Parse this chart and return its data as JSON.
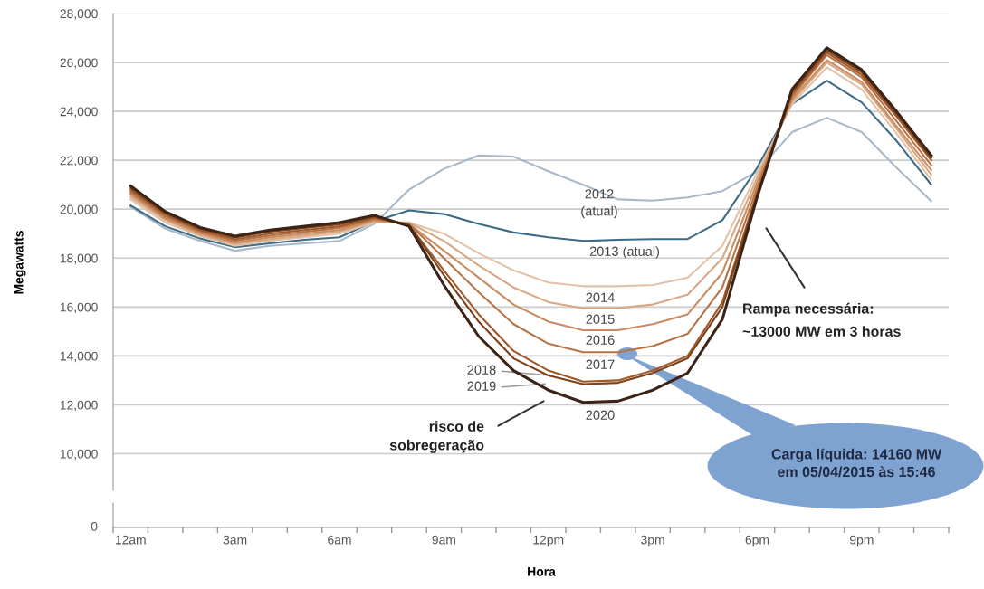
{
  "chart_data": {
    "type": "line",
    "ylabel": "Megawatts",
    "xlabel": "Hora",
    "grid": "y",
    "line_style": "solid",
    "categories": [
      "12am",
      null,
      null,
      "3am",
      null,
      null,
      "6am",
      null,
      null,
      "9am",
      null,
      null,
      "12pm",
      null,
      null,
      "3pm",
      null,
      null,
      "6pm",
      null,
      null,
      "9pm",
      null,
      null
    ],
    "ylim": [
      8500,
      28000
    ],
    "yticks": [
      {
        "value": 10000,
        "label": "10,000"
      },
      {
        "value": 12000,
        "label": "12,000"
      },
      {
        "value": 14000,
        "label": "14,000"
      },
      {
        "value": 16000,
        "label": "16,000"
      },
      {
        "value": 18000,
        "label": "18,000"
      },
      {
        "value": 20000,
        "label": "20,000"
      },
      {
        "value": 22000,
        "label": "22,000"
      },
      {
        "value": 24000,
        "label": "24,000"
      },
      {
        "value": 26000,
        "label": "26,000"
      },
      {
        "value": 28000,
        "label": "28,000"
      }
    ],
    "series": [
      {
        "name": "2012\n(atual)",
        "color": "#a9b8c8",
        "values": [
          20100,
          19200,
          18700,
          18300,
          18500,
          18600,
          18700,
          19400,
          20800,
          21650,
          22200,
          22150,
          21550,
          21000,
          20400,
          20350,
          20480,
          20740,
          21550,
          23150,
          23740,
          23150,
          21700,
          20330
        ]
      },
      {
        "name": "2013 (atual)",
        "color": "#3d6b85",
        "values": [
          20150,
          19300,
          18800,
          18450,
          18600,
          18750,
          18850,
          19500,
          19950,
          19800,
          19400,
          19050,
          18850,
          18700,
          18750,
          18780,
          18780,
          19550,
          21700,
          24300,
          25260,
          24370,
          22800,
          21000
        ]
      },
      {
        "name": "2014",
        "color": "#e3c3a8",
        "values": [
          20400,
          19450,
          18900,
          18500,
          18700,
          18850,
          19000,
          19450,
          19450,
          19000,
          18200,
          17500,
          17000,
          16850,
          16850,
          16900,
          17200,
          18500,
          21500,
          24300,
          25800,
          24900,
          23100,
          21200
        ]
      },
      {
        "name": "2015",
        "color": "#d8a784",
        "values": [
          20500,
          19550,
          18950,
          18570,
          18770,
          18920,
          19080,
          19500,
          19450,
          18700,
          17700,
          16800,
          16200,
          15950,
          15950,
          16100,
          16500,
          18000,
          21300,
          24400,
          26000,
          25100,
          23300,
          21400
        ]
      },
      {
        "name": "2016",
        "color": "#c98c62",
        "values": [
          20600,
          19620,
          19020,
          18630,
          18840,
          19000,
          19150,
          19550,
          19400,
          18300,
          17200,
          16100,
          15400,
          15050,
          15050,
          15300,
          15700,
          17400,
          21100,
          24500,
          26100,
          25200,
          23400,
          21600
        ]
      },
      {
        "name": "2017",
        "color": "#b87345",
        "values": [
          20680,
          19700,
          19080,
          18700,
          18920,
          19070,
          19230,
          19600,
          19400,
          18000,
          16600,
          15300,
          14500,
          14150,
          14150,
          14400,
          14900,
          16800,
          20900,
          24600,
          26300,
          25400,
          23600,
          21800
        ]
      },
      {
        "name": "2018",
        "color": "#a0582a",
        "values": [
          20770,
          19770,
          19140,
          18770,
          19000,
          19150,
          19300,
          19650,
          19350,
          17500,
          15700,
          14200,
          13400,
          12950,
          13000,
          13400,
          14000,
          16200,
          20700,
          24700,
          26400,
          25500,
          23800,
          22000
        ]
      },
      {
        "name": "2019",
        "color": "#7d4019",
        "values": [
          20860,
          19840,
          19200,
          18840,
          19080,
          19230,
          19380,
          19700,
          19350,
          17300,
          15400,
          13900,
          13200,
          12850,
          12900,
          13300,
          13900,
          16000,
          20600,
          24800,
          26500,
          25600,
          23900,
          22100
        ]
      },
      {
        "name": "2020",
        "color": "#3b2416",
        "values": [
          20950,
          19900,
          19250,
          18900,
          19150,
          19300,
          19450,
          19750,
          19300,
          16900,
          14800,
          13400,
          12600,
          12100,
          12150,
          12600,
          13300,
          15500,
          20500,
          24900,
          26600,
          25700,
          24000,
          22200
        ]
      }
    ],
    "annotations": [
      "Rampa necessária:\n~13000 MW em 3 horas",
      "risco de\nsobregeração",
      "Carga líquida: 14160 MW\nem 05/04/2015 às 15:46",
      "0"
    ]
  }
}
